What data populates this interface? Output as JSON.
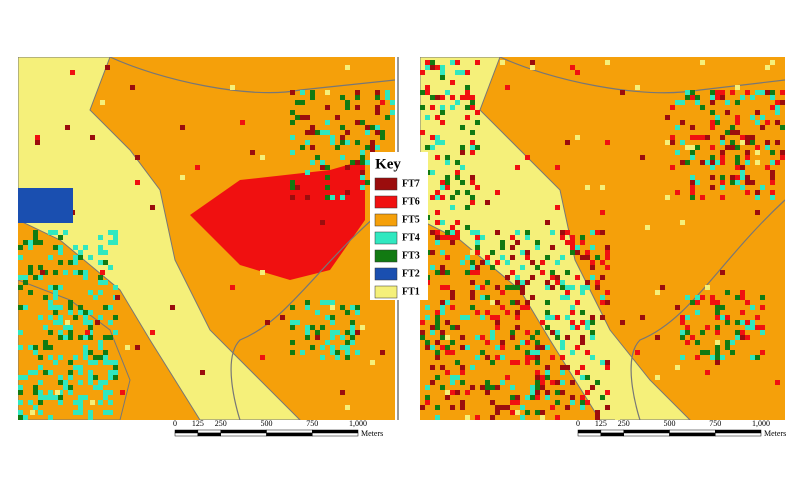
{
  "legend": {
    "title": "Key",
    "items": [
      {
        "label": "FT7",
        "color": "#9b0d0d"
      },
      {
        "label": "FT6",
        "color": "#f01010"
      },
      {
        "label": "FT5",
        "color": "#f5a00a"
      },
      {
        "label": "FT4",
        "color": "#30e8c0"
      },
      {
        "label": "FT3",
        "color": "#127a12"
      },
      {
        "label": "FT2",
        "color": "#1a4fb0"
      },
      {
        "label": "FT1",
        "color": "#f5f07a"
      }
    ]
  },
  "maps": [
    {
      "scale": {
        "ticks": [
          0,
          125,
          250,
          500,
          750,
          {
            "value": 1000,
            "label": "1,000"
          }
        ],
        "unit": "Meters"
      }
    },
    {
      "scale": {
        "ticks": [
          0,
          125,
          250,
          500,
          750,
          {
            "value": 1000,
            "label": "1,000"
          }
        ],
        "unit": "Meters"
      }
    }
  ]
}
